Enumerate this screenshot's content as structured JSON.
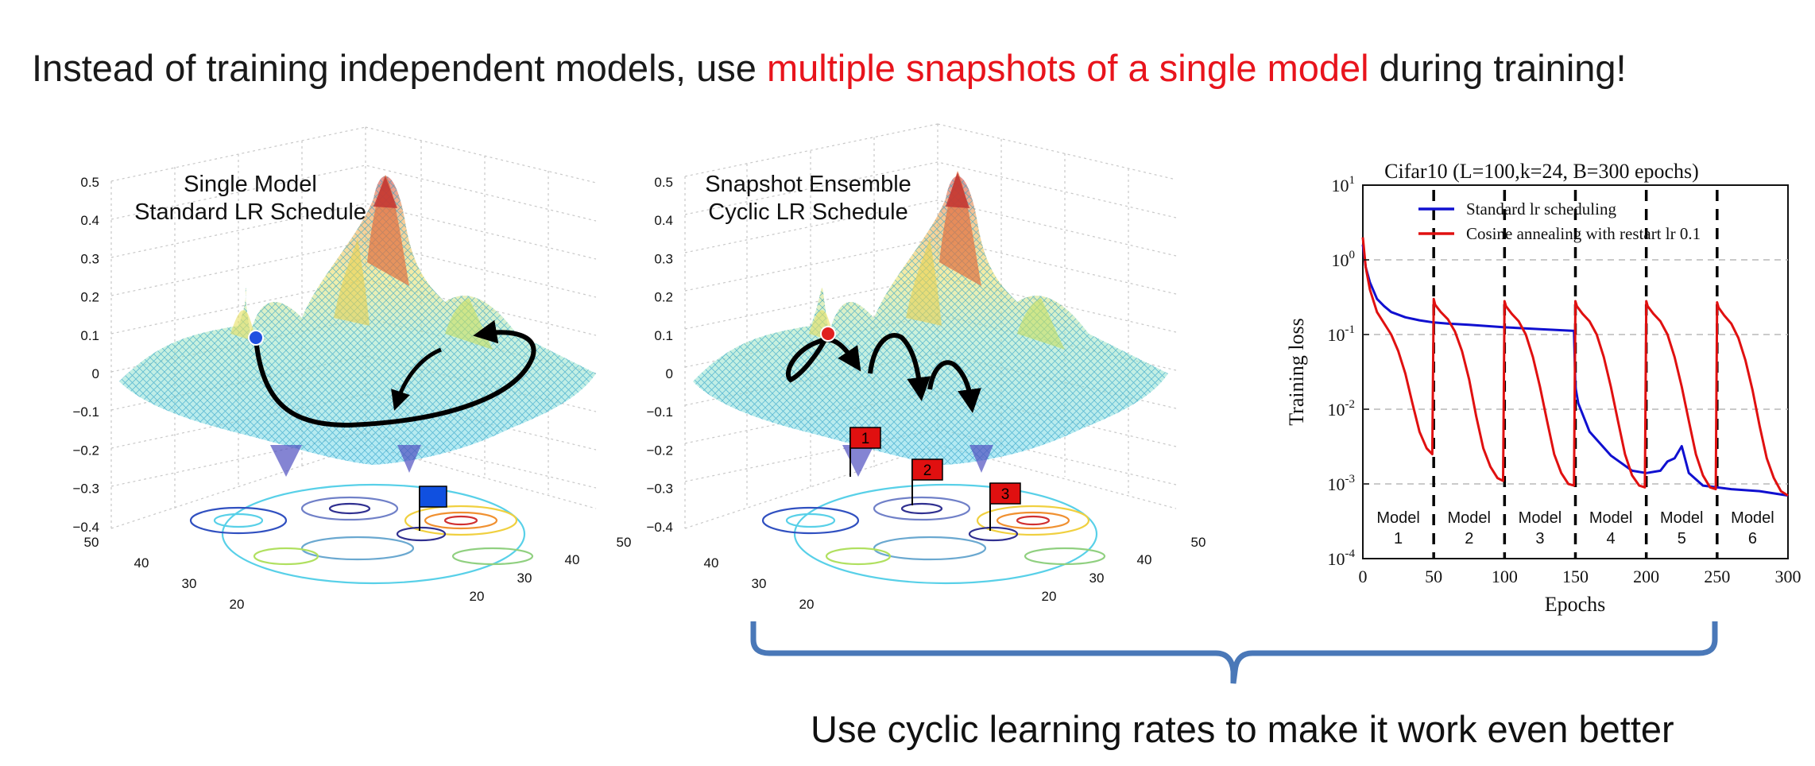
{
  "headline": {
    "part1": "Instead of training independent models, use ",
    "highlight": "multiple snapshots of a single model",
    "part2": " during training!"
  },
  "caption": "Use cyclic learning rates to make it work even better",
  "colors": {
    "highlight": "#e8141c",
    "bracket": "#4a78b8",
    "standard": "#1010d0",
    "cosine": "#e01010"
  },
  "surface_left": {
    "title_line1": "Single Model",
    "title_line2": "Standard LR Schedule",
    "z_ticks": [
      "0.5",
      "0.4",
      "0.3",
      "0.2",
      "0.1",
      "0",
      "−0.1",
      "−0.2",
      "−0.3",
      "−0.4"
    ],
    "y_ticks": [
      "50",
      "40",
      "30",
      "20"
    ],
    "x_ticks": [
      "20",
      "30",
      "40",
      "50"
    ],
    "start_marker_color": "blue",
    "flag_color": "blue"
  },
  "surface_right": {
    "title_line1": "Snapshot Ensemble",
    "title_line2": "Cyclic LR Schedule",
    "z_ticks": [
      "0.5",
      "0.4",
      "0.3",
      "0.2",
      "0.1",
      "0",
      "−0.1",
      "−0.2",
      "−0.3",
      "−0.4"
    ],
    "y_ticks": [
      "40",
      "30",
      "20"
    ],
    "x_ticks": [
      "20",
      "30",
      "40",
      "50"
    ],
    "start_marker_color": "red",
    "flags": [
      "1",
      "2",
      "3"
    ]
  },
  "chart_data": {
    "type": "line",
    "title": "Cifar10 (L=100,k=24, B=300 epochs)",
    "xlabel": "Epochs",
    "ylabel": "Training loss",
    "xlim": [
      0,
      300
    ],
    "ylim": [
      0.0001,
      10
    ],
    "yscale": "log",
    "x_ticks": [
      "0",
      "50",
      "100",
      "150",
      "200",
      "250",
      "300"
    ],
    "y_ticks": [
      {
        "base": "10",
        "exp": "1"
      },
      {
        "base": "10",
        "exp": "0"
      },
      {
        "base": "10",
        "exp": "-1"
      },
      {
        "base": "10",
        "exp": "-2"
      },
      {
        "base": "10",
        "exp": "-3"
      },
      {
        "base": "10",
        "exp": "-4"
      }
    ],
    "grid": "horizontal dashed",
    "legend_position": "top",
    "series": [
      {
        "name": "Standard lr scheduling",
        "color": "#1010d0",
        "x": [
          0,
          2,
          5,
          10,
          15,
          20,
          30,
          40,
          50,
          60,
          75,
          100,
          125,
          149,
          150,
          152,
          160,
          175,
          190,
          200,
          210,
          215,
          220,
          225,
          230,
          240,
          260,
          280,
          300
        ],
        "y": [
          1.6,
          0.8,
          0.5,
          0.3,
          0.24,
          0.2,
          0.17,
          0.155,
          0.145,
          0.14,
          0.135,
          0.125,
          0.118,
          0.112,
          0.02,
          0.012,
          0.005,
          0.0024,
          0.0015,
          0.0014,
          0.0015,
          0.002,
          0.0022,
          0.0032,
          0.0014,
          0.00095,
          0.00085,
          0.0008,
          0.0007
        ]
      },
      {
        "name": "Cosine annealing with restart lr 0.1",
        "color": "#e01010",
        "x": [
          0,
          2,
          5,
          10,
          20,
          25,
          30,
          35,
          40,
          45,
          49,
          50,
          51,
          55,
          60,
          65,
          70,
          75,
          80,
          85,
          90,
          95,
          99,
          100,
          101,
          105,
          110,
          115,
          120,
          125,
          130,
          135,
          140,
          145,
          149,
          150,
          151,
          155,
          160,
          165,
          170,
          175,
          180,
          185,
          190,
          195,
          199,
          200,
          201,
          205,
          210,
          215,
          220,
          225,
          230,
          235,
          240,
          245,
          249,
          250,
          251,
          255,
          260,
          265,
          270,
          275,
          280,
          285,
          290,
          295,
          300
        ],
        "y": [
          2,
          0.8,
          0.4,
          0.2,
          0.1,
          0.06,
          0.03,
          0.012,
          0.005,
          0.003,
          0.0025,
          0.3,
          0.25,
          0.2,
          0.16,
          0.11,
          0.06,
          0.025,
          0.008,
          0.003,
          0.0017,
          0.0012,
          0.0011,
          0.28,
          0.24,
          0.19,
          0.15,
          0.1,
          0.05,
          0.02,
          0.007,
          0.0025,
          0.0014,
          0.001,
          0.00095,
          0.28,
          0.24,
          0.19,
          0.15,
          0.1,
          0.05,
          0.02,
          0.007,
          0.0025,
          0.0013,
          0.00095,
          0.0009,
          0.28,
          0.24,
          0.19,
          0.15,
          0.1,
          0.05,
          0.02,
          0.007,
          0.0025,
          0.0013,
          0.0009,
          0.00085,
          0.27,
          0.23,
          0.18,
          0.14,
          0.09,
          0.045,
          0.018,
          0.006,
          0.0022,
          0.0012,
          0.0008,
          0.0007
        ]
      }
    ],
    "restart_epochs": [
      50,
      100,
      150,
      200,
      250
    ],
    "model_labels": [
      {
        "line1": "Model",
        "line2": "1"
      },
      {
        "line1": "Model",
        "line2": "2"
      },
      {
        "line1": "Model",
        "line2": "3"
      },
      {
        "line1": "Model",
        "line2": "4"
      },
      {
        "line1": "Model",
        "line2": "5"
      },
      {
        "line1": "Model",
        "line2": "6"
      }
    ]
  }
}
